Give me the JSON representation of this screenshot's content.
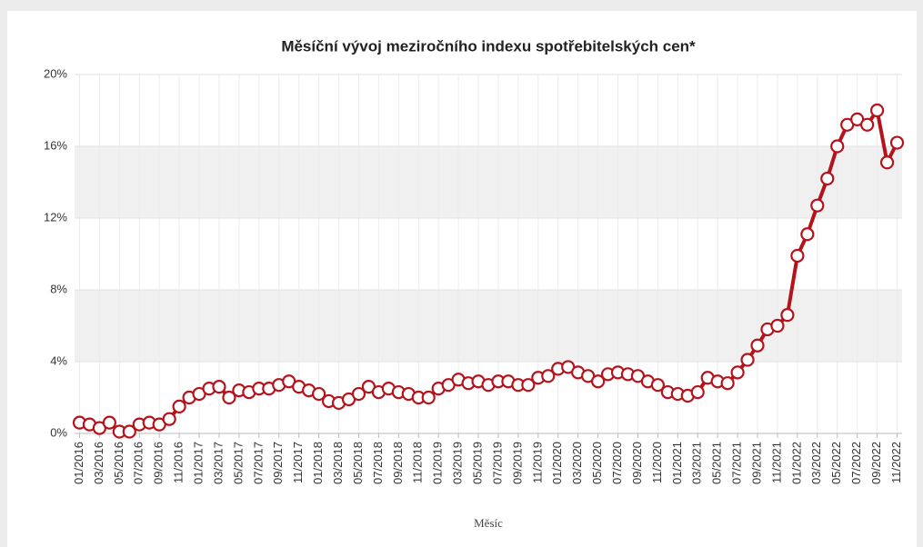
{
  "chart_data": {
    "type": "line",
    "title": "Měsíční vývoj meziročního indexu spotřebitelských cen*",
    "x_label": "Měsíc",
    "categories": [
      "01/2016",
      null,
      "03/2016",
      null,
      "05/2016",
      null,
      "07/2016",
      null,
      "09/2016",
      null,
      "11/2016",
      null,
      "01/2017",
      null,
      "03/2017",
      null,
      "05/2017",
      null,
      "07/2017",
      null,
      "09/2017",
      null,
      "11/2017",
      null,
      "01/2018",
      null,
      "03/2018",
      null,
      "05/2018",
      null,
      "07/2018",
      null,
      "09/2018",
      null,
      "11/2018",
      null,
      "01/2019",
      null,
      "03/2019",
      null,
      "05/2019",
      null,
      "07/2019",
      null,
      "09/2019",
      null,
      "11/2019",
      null,
      "01/2020",
      null,
      "03/2020",
      null,
      "05/2020",
      null,
      "07/2020",
      null,
      "09/2020",
      null,
      "11/2020",
      null,
      "01/2021",
      null,
      "03/2021",
      null,
      "05/2021",
      null,
      "07/2021",
      null,
      "09/2021",
      null,
      "11/2021",
      null,
      "01/2022",
      null,
      "03/2022",
      null,
      "05/2022",
      null,
      "07/2022",
      null,
      "09/2022",
      null,
      "11/2022"
    ],
    "values": [
      0.6,
      0.5,
      0.3,
      0.6,
      0.1,
      0.1,
      0.5,
      0.6,
      0.5,
      0.8,
      1.5,
      2.0,
      2.2,
      2.5,
      2.6,
      2.0,
      2.4,
      2.3,
      2.5,
      2.5,
      2.7,
      2.9,
      2.6,
      2.4,
      2.2,
      1.8,
      1.7,
      1.9,
      2.2,
      2.6,
      2.3,
      2.5,
      2.3,
      2.2,
      2.0,
      2.0,
      2.5,
      2.7,
      3.0,
      2.8,
      2.9,
      2.7,
      2.9,
      2.9,
      2.7,
      2.7,
      3.1,
      3.2,
      3.6,
      3.7,
      3.4,
      3.2,
      2.9,
      3.3,
      3.4,
      3.3,
      3.2,
      2.9,
      2.7,
      2.3,
      2.2,
      2.1,
      2.3,
      3.1,
      2.9,
      2.8,
      3.4,
      4.1,
      4.9,
      5.8,
      6.0,
      6.6,
      9.9,
      11.1,
      12.7,
      14.2,
      16.0,
      17.2,
      17.5,
      17.2,
      18.0,
      15.1,
      16.2
    ],
    "color": "#b5121b",
    "ylim": [
      0,
      20
    ],
    "yticks": [
      {
        "value": 0,
        "label": "0%"
      },
      {
        "value": 4,
        "label": "4%"
      },
      {
        "value": 8,
        "label": "8%"
      },
      {
        "value": 12,
        "label": "12%"
      },
      {
        "value": 16,
        "label": "16%"
      },
      {
        "value": 20,
        "label": "20%"
      }
    ],
    "grid": true
  }
}
